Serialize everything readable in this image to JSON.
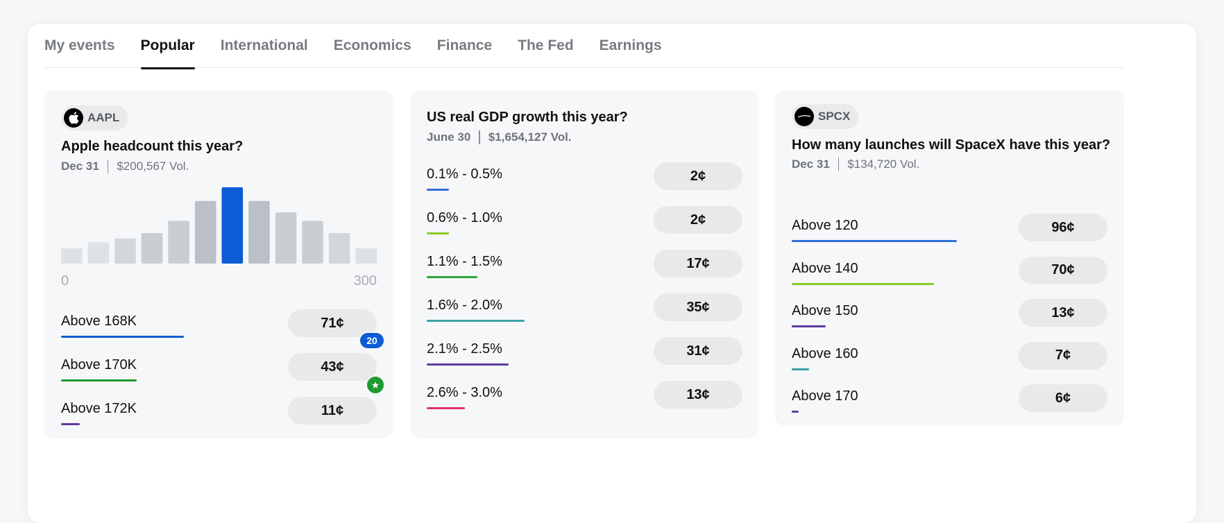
{
  "tabs": [
    {
      "label": "My events"
    },
    {
      "label": "Popular"
    },
    {
      "label": "International"
    },
    {
      "label": "Economics"
    },
    {
      "label": "Finance"
    },
    {
      "label": "The Fed"
    },
    {
      "label": "Earnings"
    }
  ],
  "active_tab": "Popular",
  "cards": [
    {
      "ticker": "AAPL",
      "icon": "apple-logo-icon",
      "title": "Apple headcount this year?",
      "date": "Dec 31",
      "volume": "$200,567 Vol.",
      "histogram": {
        "axis_min": "0",
        "axis_max": "300",
        "values": [
          0.2,
          0.28,
          0.33,
          0.4,
          0.56,
          0.82,
          1.0,
          0.82,
          0.67,
          0.56,
          0.4,
          0.2
        ],
        "highlight_index": 6
      },
      "outcomes": [
        {
          "label": "Above 168K",
          "price": "71¢",
          "bar": 0.39,
          "color": "#0b5cd5",
          "badge": "20"
        },
        {
          "label": "Above 170K",
          "price": "43¢",
          "bar": 0.24,
          "color": "#1f9a2e",
          "badge": "star"
        },
        {
          "label": "Above 172K",
          "price": "11¢",
          "bar": 0.06,
          "color": "#5b3a9e"
        }
      ]
    },
    {
      "title": "US real GDP growth this year?",
      "date": "June 30",
      "volume": "$1,654,127 Vol.",
      "outcomes": [
        {
          "label": "0.1% - 0.5%",
          "price": "2¢",
          "bar": 0.07,
          "color": "#2f6fd6"
        },
        {
          "label": "0.6% - 1.0%",
          "price": "2¢",
          "bar": 0.07,
          "color": "#8ac926"
        },
        {
          "label": "1.1% - 1.5%",
          "price": "17¢",
          "bar": 0.16,
          "color": "#2fa33a"
        },
        {
          "label": "1.6% - 2.0%",
          "price": "35¢",
          "bar": 0.31,
          "color": "#3aa0a8"
        },
        {
          "label": "2.1% - 2.5%",
          "price": "31¢",
          "bar": 0.26,
          "color": "#5b3a9e"
        },
        {
          "label": "2.6% - 3.0%",
          "price": "13¢",
          "bar": 0.12,
          "color": "#e0336a"
        }
      ]
    },
    {
      "ticker": "SPCX",
      "icon": "spacex-logo-icon",
      "title": "How many launches will SpaceX have this year?",
      "date": "Dec 31",
      "volume": "$134,720 Vol.",
      "outcomes": [
        {
          "label": "Above 120",
          "price": "96¢",
          "bar": 0.58,
          "color": "#2f6fd6"
        },
        {
          "label": "Above 140",
          "price": "70¢",
          "bar": 0.5,
          "color": "#8ac926"
        },
        {
          "label": "Above 150",
          "price": "13¢",
          "bar": 0.12,
          "color": "#5b3a9e"
        },
        {
          "label": "Above 160",
          "price": "7¢",
          "bar": 0.06,
          "color": "#3aa0a8"
        },
        {
          "label": "Above 170",
          "price": "6¢",
          "bar": 0.02,
          "color": "#5b3a9e"
        }
      ]
    }
  ]
}
